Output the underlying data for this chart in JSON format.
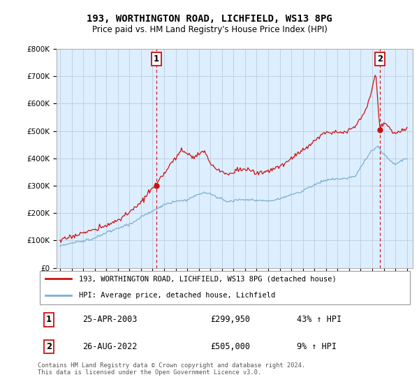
{
  "title": "193, WORTHINGTON ROAD, LICHFIELD, WS13 8PG",
  "subtitle": "Price paid vs. HM Land Registry's House Price Index (HPI)",
  "ylabel_ticks": [
    "£0",
    "£100K",
    "£200K",
    "£300K",
    "£400K",
    "£500K",
    "£600K",
    "£700K",
    "£800K"
  ],
  "ylim": [
    0,
    800000
  ],
  "xlim_start": 1994.7,
  "xlim_end": 2025.5,
  "x_ticks": [
    1995,
    1996,
    1997,
    1998,
    1999,
    2000,
    2001,
    2002,
    2003,
    2004,
    2005,
    2006,
    2007,
    2008,
    2009,
    2010,
    2011,
    2012,
    2013,
    2014,
    2015,
    2016,
    2017,
    2018,
    2019,
    2020,
    2021,
    2022,
    2023,
    2024,
    2025
  ],
  "hpi_color": "#7aafd4",
  "price_color": "#cc1111",
  "point1_date": 2003.31,
  "point1_value": 299950,
  "point2_date": 2022.65,
  "point2_value": 505000,
  "annotation1": "1",
  "annotation2": "2",
  "legend_line1": "193, WORTHINGTON ROAD, LICHFIELD, WS13 8PG (detached house)",
  "legend_line2": "HPI: Average price, detached house, Lichfield",
  "table_row1_num": "1",
  "table_row1_date": "25-APR-2003",
  "table_row1_price": "£299,950",
  "table_row1_hpi": "43% ↑ HPI",
  "table_row2_num": "2",
  "table_row2_date": "26-AUG-2022",
  "table_row2_price": "£505,000",
  "table_row2_hpi": "9% ↑ HPI",
  "footer": "Contains HM Land Registry data © Crown copyright and database right 2024.\nThis data is licensed under the Open Government Licence v3.0.",
  "bg_color": "#ffffff",
  "plot_bg_color": "#ddeeff",
  "grid_color": "#bbccdd"
}
